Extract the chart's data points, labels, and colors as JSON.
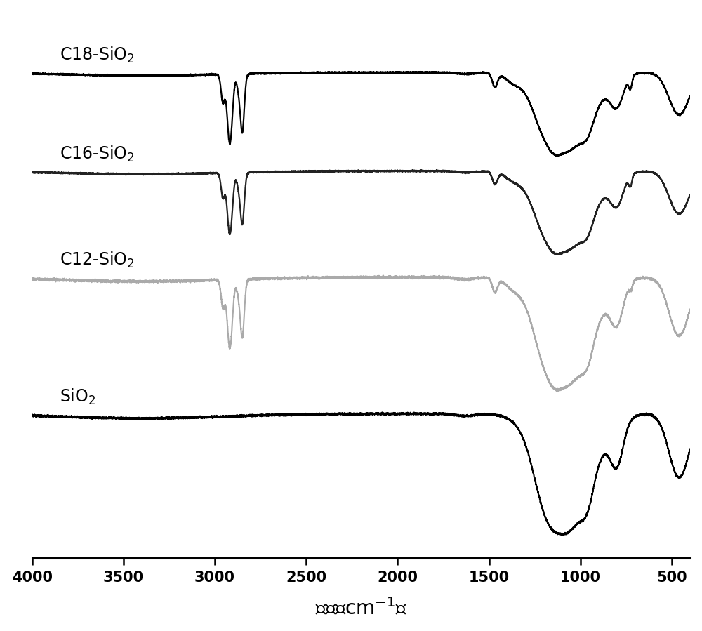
{
  "xlim": [
    4000,
    400
  ],
  "xticks": [
    4000,
    3500,
    3000,
    2500,
    2000,
    1500,
    1000,
    500
  ],
  "labels": [
    "C18-SiO$_2$",
    "C16-SiO$_2$",
    "C12-SiO$_2$",
    "SiO$_2$"
  ],
  "colors": [
    "#000000",
    "#1a1a1a",
    "#aaaaaa",
    "#000000"
  ],
  "background": "#ffffff",
  "label_fontsize": 17,
  "tick_fontsize": 15
}
